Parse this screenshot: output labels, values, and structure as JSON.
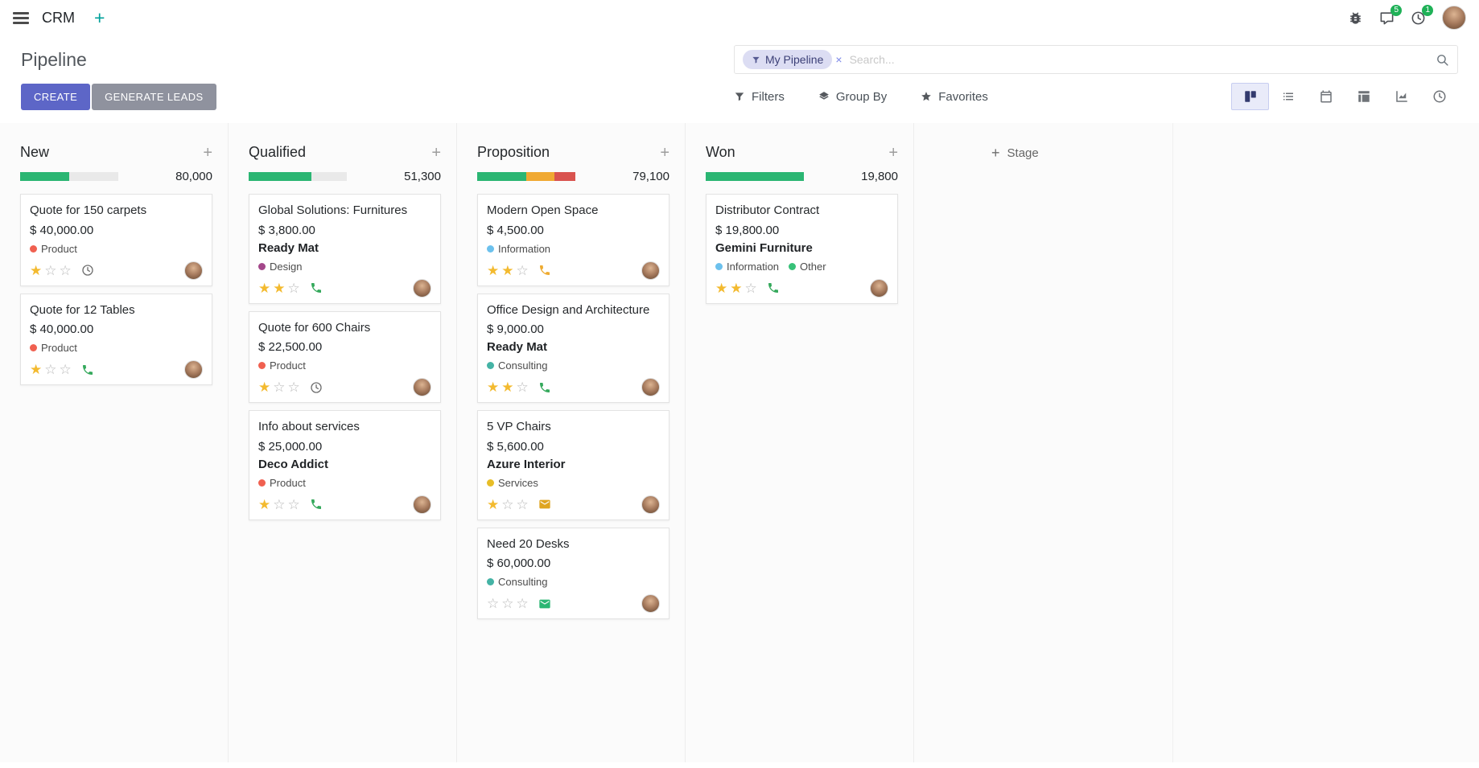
{
  "navbar": {
    "app_name": "CRM",
    "messages_badge": "5",
    "activities_badge": "1"
  },
  "control_panel": {
    "title": "Pipeline",
    "create_label": "CREATE",
    "generate_leads_label": "GENERATE LEADS",
    "filters_label": "Filters",
    "group_by_label": "Group By",
    "favorites_label": "Favorites",
    "search": {
      "facet_label": "My Pipeline",
      "facet_remove": "×",
      "placeholder": "Search..."
    }
  },
  "view_switcher": [
    {
      "name": "kanban",
      "active": true
    },
    {
      "name": "list",
      "active": false
    },
    {
      "name": "calendar",
      "active": false
    },
    {
      "name": "pivot",
      "active": false
    },
    {
      "name": "graph",
      "active": false
    },
    {
      "name": "activity",
      "active": false
    }
  ],
  "board": {
    "add_stage_label": "Stage",
    "columns": [
      {
        "name": "New",
        "total": "80,000",
        "progress": [
          {
            "color": "#2bb673",
            "pct": 50
          }
        ],
        "cards": [
          {
            "title": "Quote for 150 carpets",
            "amount": "$ 40,000.00",
            "tags": [
              {
                "label": "Product",
                "color": "#f06050"
              }
            ],
            "stars": 1,
            "activity": {
              "icon": "clock",
              "color": "#6e6e6e"
            }
          },
          {
            "title": "Quote for 12 Tables",
            "amount": "$ 40,000.00",
            "tags": [
              {
                "label": "Product",
                "color": "#f06050"
              }
            ],
            "stars": 1,
            "activity": {
              "icon": "phone",
              "color": "#35a95c"
            }
          }
        ]
      },
      {
        "name": "Qualified",
        "total": "51,300",
        "progress": [
          {
            "color": "#2bb673",
            "pct": 64
          }
        ],
        "cards": [
          {
            "title": "Global Solutions: Furnitures",
            "amount": "$ 3,800.00",
            "partner": "Ready Mat",
            "tags": [
              {
                "label": "Design",
                "color": "#a3478a"
              }
            ],
            "stars": 2,
            "activity": {
              "icon": "phone",
              "color": "#35a95c"
            }
          },
          {
            "title": "Quote for 600 Chairs",
            "amount": "$ 22,500.00",
            "tags": [
              {
                "label": "Product",
                "color": "#f06050"
              }
            ],
            "stars": 1,
            "activity": {
              "icon": "clock",
              "color": "#6e6e6e"
            }
          },
          {
            "title": "Info about services",
            "amount": "$ 25,000.00",
            "partner": "Deco Addict",
            "tags": [
              {
                "label": "Product",
                "color": "#f06050"
              }
            ],
            "stars": 1,
            "activity": {
              "icon": "phone",
              "color": "#35a95c"
            }
          }
        ]
      },
      {
        "name": "Proposition",
        "total": "79,100",
        "progress": [
          {
            "color": "#2bb673",
            "pct": 50
          },
          {
            "color": "#f0a932",
            "pct": 29
          },
          {
            "color": "#d9534f",
            "pct": 21
          }
        ],
        "cards": [
          {
            "title": "Modern Open Space",
            "amount": "$ 4,500.00",
            "tags": [
              {
                "label": "Information",
                "color": "#6cc1ed"
              }
            ],
            "stars": 2,
            "activity": {
              "icon": "phone",
              "color": "#eeab31"
            }
          },
          {
            "title": "Office Design and Architecture",
            "amount": "$ 9,000.00",
            "partner": "Ready Mat",
            "tags": [
              {
                "label": "Consulting",
                "color": "#44b3a5"
              }
            ],
            "stars": 2,
            "activity": {
              "icon": "phone",
              "color": "#35a95c"
            }
          },
          {
            "title": "5 VP Chairs",
            "amount": "$ 5,600.00",
            "partner": "Azure Interior",
            "tags": [
              {
                "label": "Services",
                "color": "#e7bd27"
              }
            ],
            "stars": 1,
            "activity": {
              "icon": "envelope",
              "color": "#dfa520"
            }
          },
          {
            "title": "Need 20 Desks",
            "amount": "$ 60,000.00",
            "tags": [
              {
                "label": "Consulting",
                "color": "#44b3a5"
              }
            ],
            "stars": 0,
            "activity": {
              "icon": "envelope",
              "color": "#2bb673"
            }
          }
        ]
      },
      {
        "name": "Won",
        "total": "19,800",
        "progress": [
          {
            "color": "#2bb673",
            "pct": 100
          }
        ],
        "cards": [
          {
            "title": "Distributor Contract",
            "amount": "$ 19,800.00",
            "partner": "Gemini Furniture",
            "tags": [
              {
                "label": "Information",
                "color": "#6cc1ed"
              },
              {
                "label": "Other",
                "color": "#37c178"
              }
            ],
            "stars": 2,
            "activity": {
              "icon": "phone",
              "color": "#35a95c"
            }
          }
        ]
      }
    ]
  }
}
